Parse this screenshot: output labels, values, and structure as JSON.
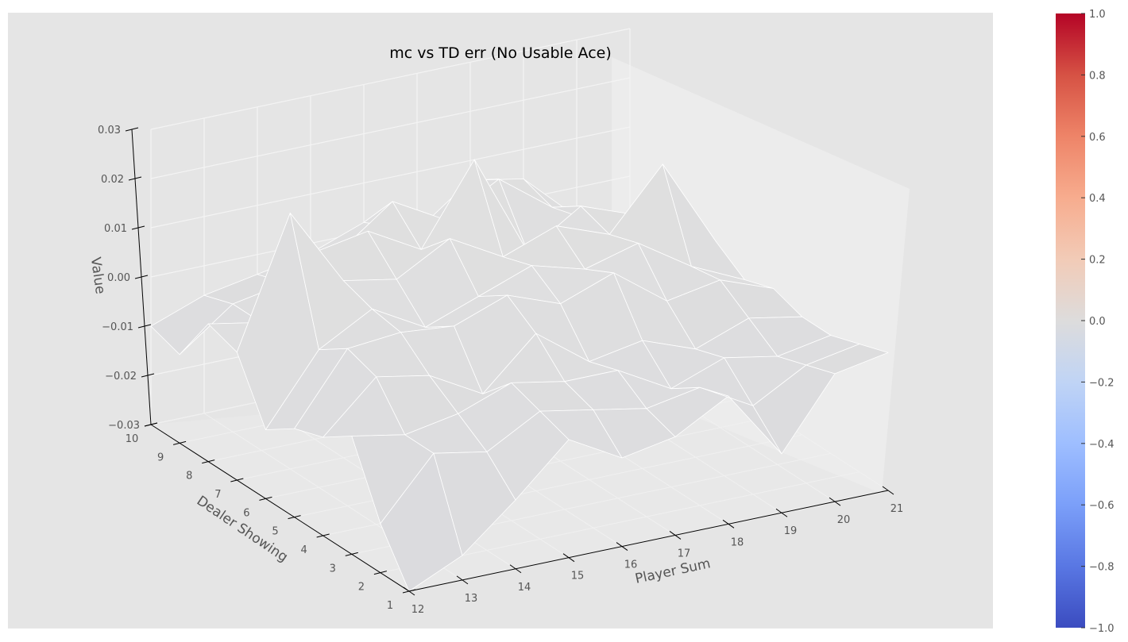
{
  "chart_data": {
    "type": "surface",
    "title": "mc vs TD err (No Usable Ace)",
    "xlabel": "Player Sum",
    "ylabel": "Dealer Showing",
    "zlabel": "Value",
    "x": [
      12,
      13,
      14,
      15,
      16,
      17,
      18,
      19,
      20,
      21
    ],
    "y": [
      1,
      2,
      3,
      4,
      5,
      6,
      7,
      8,
      9,
      10
    ],
    "x_ticks": [
      "12",
      "13",
      "14",
      "15",
      "16",
      "17",
      "18",
      "19",
      "20",
      "21"
    ],
    "y_ticks": [
      "1",
      "2",
      "3",
      "4",
      "5",
      "6",
      "7",
      "8",
      "9",
      "10"
    ],
    "z_ticks": [
      "−0.03",
      "−0.02",
      "−0.01",
      "0.00",
      "0.01",
      "0.02",
      "0.03"
    ],
    "z_tick_values": [
      -0.03,
      -0.02,
      -0.01,
      0.0,
      0.01,
      0.02,
      0.03
    ],
    "zlim": [
      -0.03,
      0.03
    ],
    "z": [
      [
        -0.03,
        -0.025,
        -0.016,
        -0.006,
        -0.012,
        -0.01,
        -0.004,
        -0.018,
        -0.004,
        -0.002
      ],
      [
        -0.02,
        -0.008,
        -0.01,
        -0.004,
        -0.006,
        -0.008,
        -0.006,
        -0.012,
        -0.006,
        -0.004
      ],
      [
        -0.006,
        -0.008,
        -0.006,
        -0.002,
        -0.004,
        -0.004,
        -0.01,
        -0.006,
        -0.008,
        -0.006
      ],
      [
        -0.01,
        0.0,
        -0.002,
        -0.008,
        0.002,
        -0.006,
        -0.004,
        -0.008,
        -0.004,
        -0.006
      ],
      [
        -0.012,
        0.002,
        0.003,
        0.002,
        0.006,
        0.002,
        0.006,
        -0.002,
        0.0,
        -0.004
      ],
      [
        -0.016,
        -0.002,
        0.004,
        -0.002,
        0.002,
        0.006,
        0.003,
        0.006,
        -0.001,
        -0.006
      ],
      [
        -0.004,
        0.022,
        0.006,
        0.004,
        0.01,
        0.004,
        0.008,
        0.004,
        0.016,
        -0.002
      ],
      [
        -0.002,
        -0.004,
        0.008,
        0.01,
        0.004,
        0.02,
        -0.001,
        0.006,
        0.002,
        -0.004
      ],
      [
        -0.012,
        -0.004,
        -0.002,
        0.002,
        0.01,
        0.004,
        0.01,
        0.002,
        -0.004,
        -0.006
      ],
      [
        -0.01,
        -0.006,
        -0.004,
        -0.002,
        0.002,
        -0.002,
        0.006,
        0.004,
        -0.006,
        -0.008
      ]
    ],
    "colorbar": {
      "ticks": [
        "−1.0",
        "−0.8",
        "−0.6",
        "−0.4",
        "−0.2",
        "0.0",
        "0.2",
        "0.4",
        "0.6",
        "0.8",
        "1.0"
      ],
      "tick_values": [
        -1.0,
        -0.8,
        -0.6,
        -0.4,
        -0.2,
        0.0,
        0.2,
        0.4,
        0.6,
        0.8,
        1.0
      ],
      "range": [
        -1.0,
        1.0
      ],
      "colormap": "coolwarm"
    },
    "grid": true,
    "colors": {
      "background": "#e5e5e5",
      "pane_back": "#ececec",
      "pane_floor": "#e8e8e8",
      "surface_edge": "#ffffff",
      "axis": "#000000",
      "text": "#555555"
    }
  }
}
